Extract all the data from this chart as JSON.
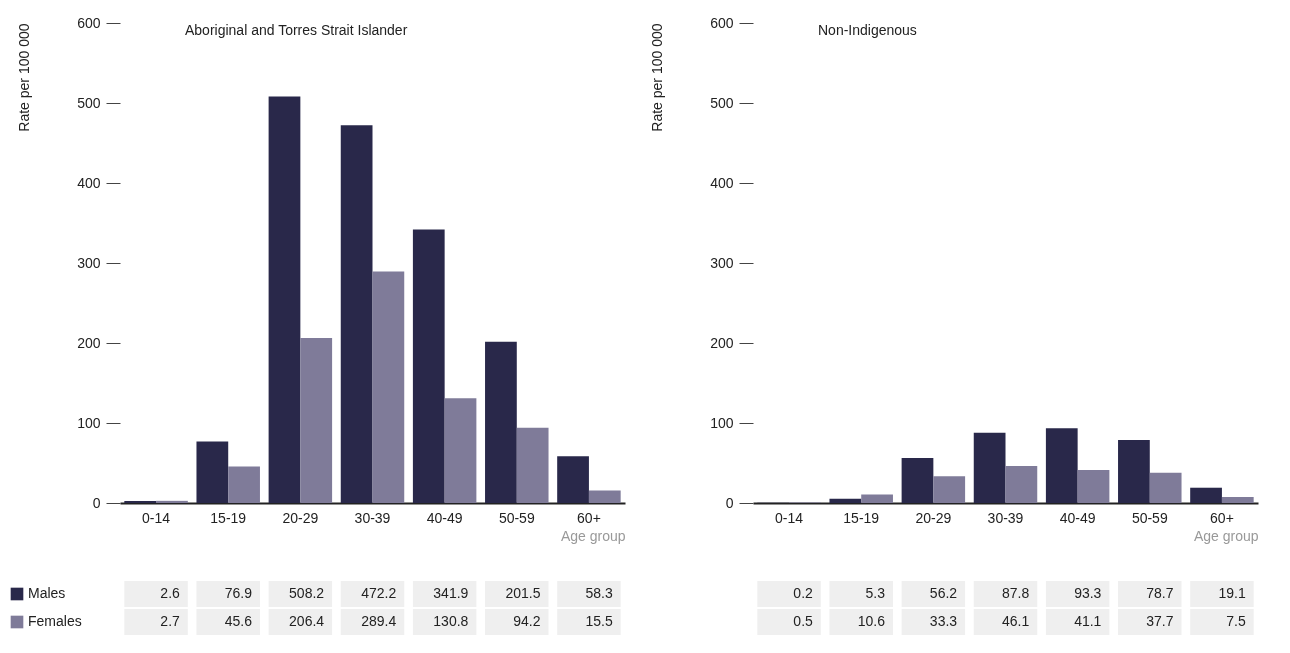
{
  "chart_data": [
    {
      "type": "bar",
      "title": "Aboriginal and Torres Strait Islander",
      "xlabel": "Age group",
      "ylabel": "Rate per 100 000",
      "categories": [
        "0-14",
        "15-19",
        "20-29",
        "30-39",
        "40-49",
        "50-59",
        "60+"
      ],
      "series": [
        {
          "name": "Males",
          "color": "#29284a",
          "values": [
            2.6,
            76.9,
            508.2,
            472.2,
            341.9,
            201.5,
            58.3
          ]
        },
        {
          "name": "Females",
          "color": "#7f7b99",
          "values": [
            2.7,
            45.6,
            206.4,
            289.4,
            130.8,
            94.2,
            15.5
          ]
        }
      ],
      "ylim": [
        0,
        600
      ],
      "yticks": [
        0,
        100,
        200,
        300,
        400,
        500,
        600
      ],
      "data_labels": true,
      "legend": "bottom left",
      "grid": false
    },
    {
      "type": "bar",
      "title": "Non-Indigenous",
      "xlabel": "Age group",
      "ylabel": "Rate per 100 000",
      "categories": [
        "0-14",
        "15-19",
        "20-29",
        "30-39",
        "40-49",
        "50-59",
        "60+"
      ],
      "series": [
        {
          "color": "#29284a",
          "values": [
            0.2,
            5.3,
            56.2,
            87.8,
            93.3,
            78.7,
            19.1
          ]
        },
        {
          "color": "#7f7b99",
          "values": [
            0.5,
            10.6,
            33.3,
            46.1,
            41.1,
            37.7,
            7.5
          ]
        }
      ],
      "ylim": [
        0,
        600
      ],
      "yticks": [
        0,
        100,
        200,
        300,
        400,
        500,
        600
      ],
      "data_labels": true,
      "grid": false
    }
  ]
}
